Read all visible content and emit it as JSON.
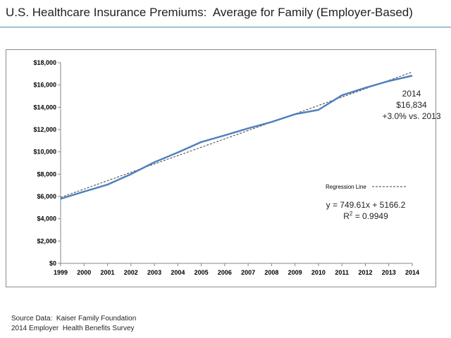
{
  "title": "U.S. Healthcare Insurance Premiums:  Average for Family (Employer-Based)",
  "source": {
    "line1": "Source Data:  Kaiser Family Foundation",
    "line2": "2014 Employer  Health Benefits Survey"
  },
  "colors": {
    "series": "#4f81bd",
    "regression": "#404040",
    "rule": "#4f8fb0"
  },
  "chart_data": {
    "type": "line",
    "x": [
      1999,
      2000,
      2001,
      2002,
      2003,
      2004,
      2005,
      2006,
      2007,
      2008,
      2009,
      2010,
      2011,
      2012,
      2013,
      2014
    ],
    "series": [
      {
        "values": [
          5791,
          6438,
          7061,
          8003,
          9068,
          9950,
          10880,
          11480,
          12106,
          12680,
          13375,
          13770,
          15073,
          15745,
          16351,
          16834
        ]
      }
    ],
    "regression": {
      "label": "Regression Line",
      "slope": 749.61,
      "intercept": 5166.2,
      "equation": "y = 749.61x + 5166.2",
      "r2_label": "R",
      "r2_value": " = 0.9949"
    },
    "annotation": {
      "line1": "2014",
      "line2": "$16,834",
      "line3": "+3.0% vs. 2013"
    },
    "ylim": [
      0,
      18000
    ],
    "yticks": [
      "$0",
      "$2,000",
      "$4,000",
      "$6,000",
      "$8,000",
      "$10,000",
      "$12,000",
      "$14,000",
      "$16,000",
      "$18,000"
    ],
    "xticks": [
      "1999",
      "2000",
      "2001",
      "2002",
      "2003",
      "2004",
      "2005",
      "2006",
      "2007",
      "2008",
      "2009",
      "2010",
      "2011",
      "2012",
      "2013",
      "2014"
    ],
    "grid": false
  }
}
